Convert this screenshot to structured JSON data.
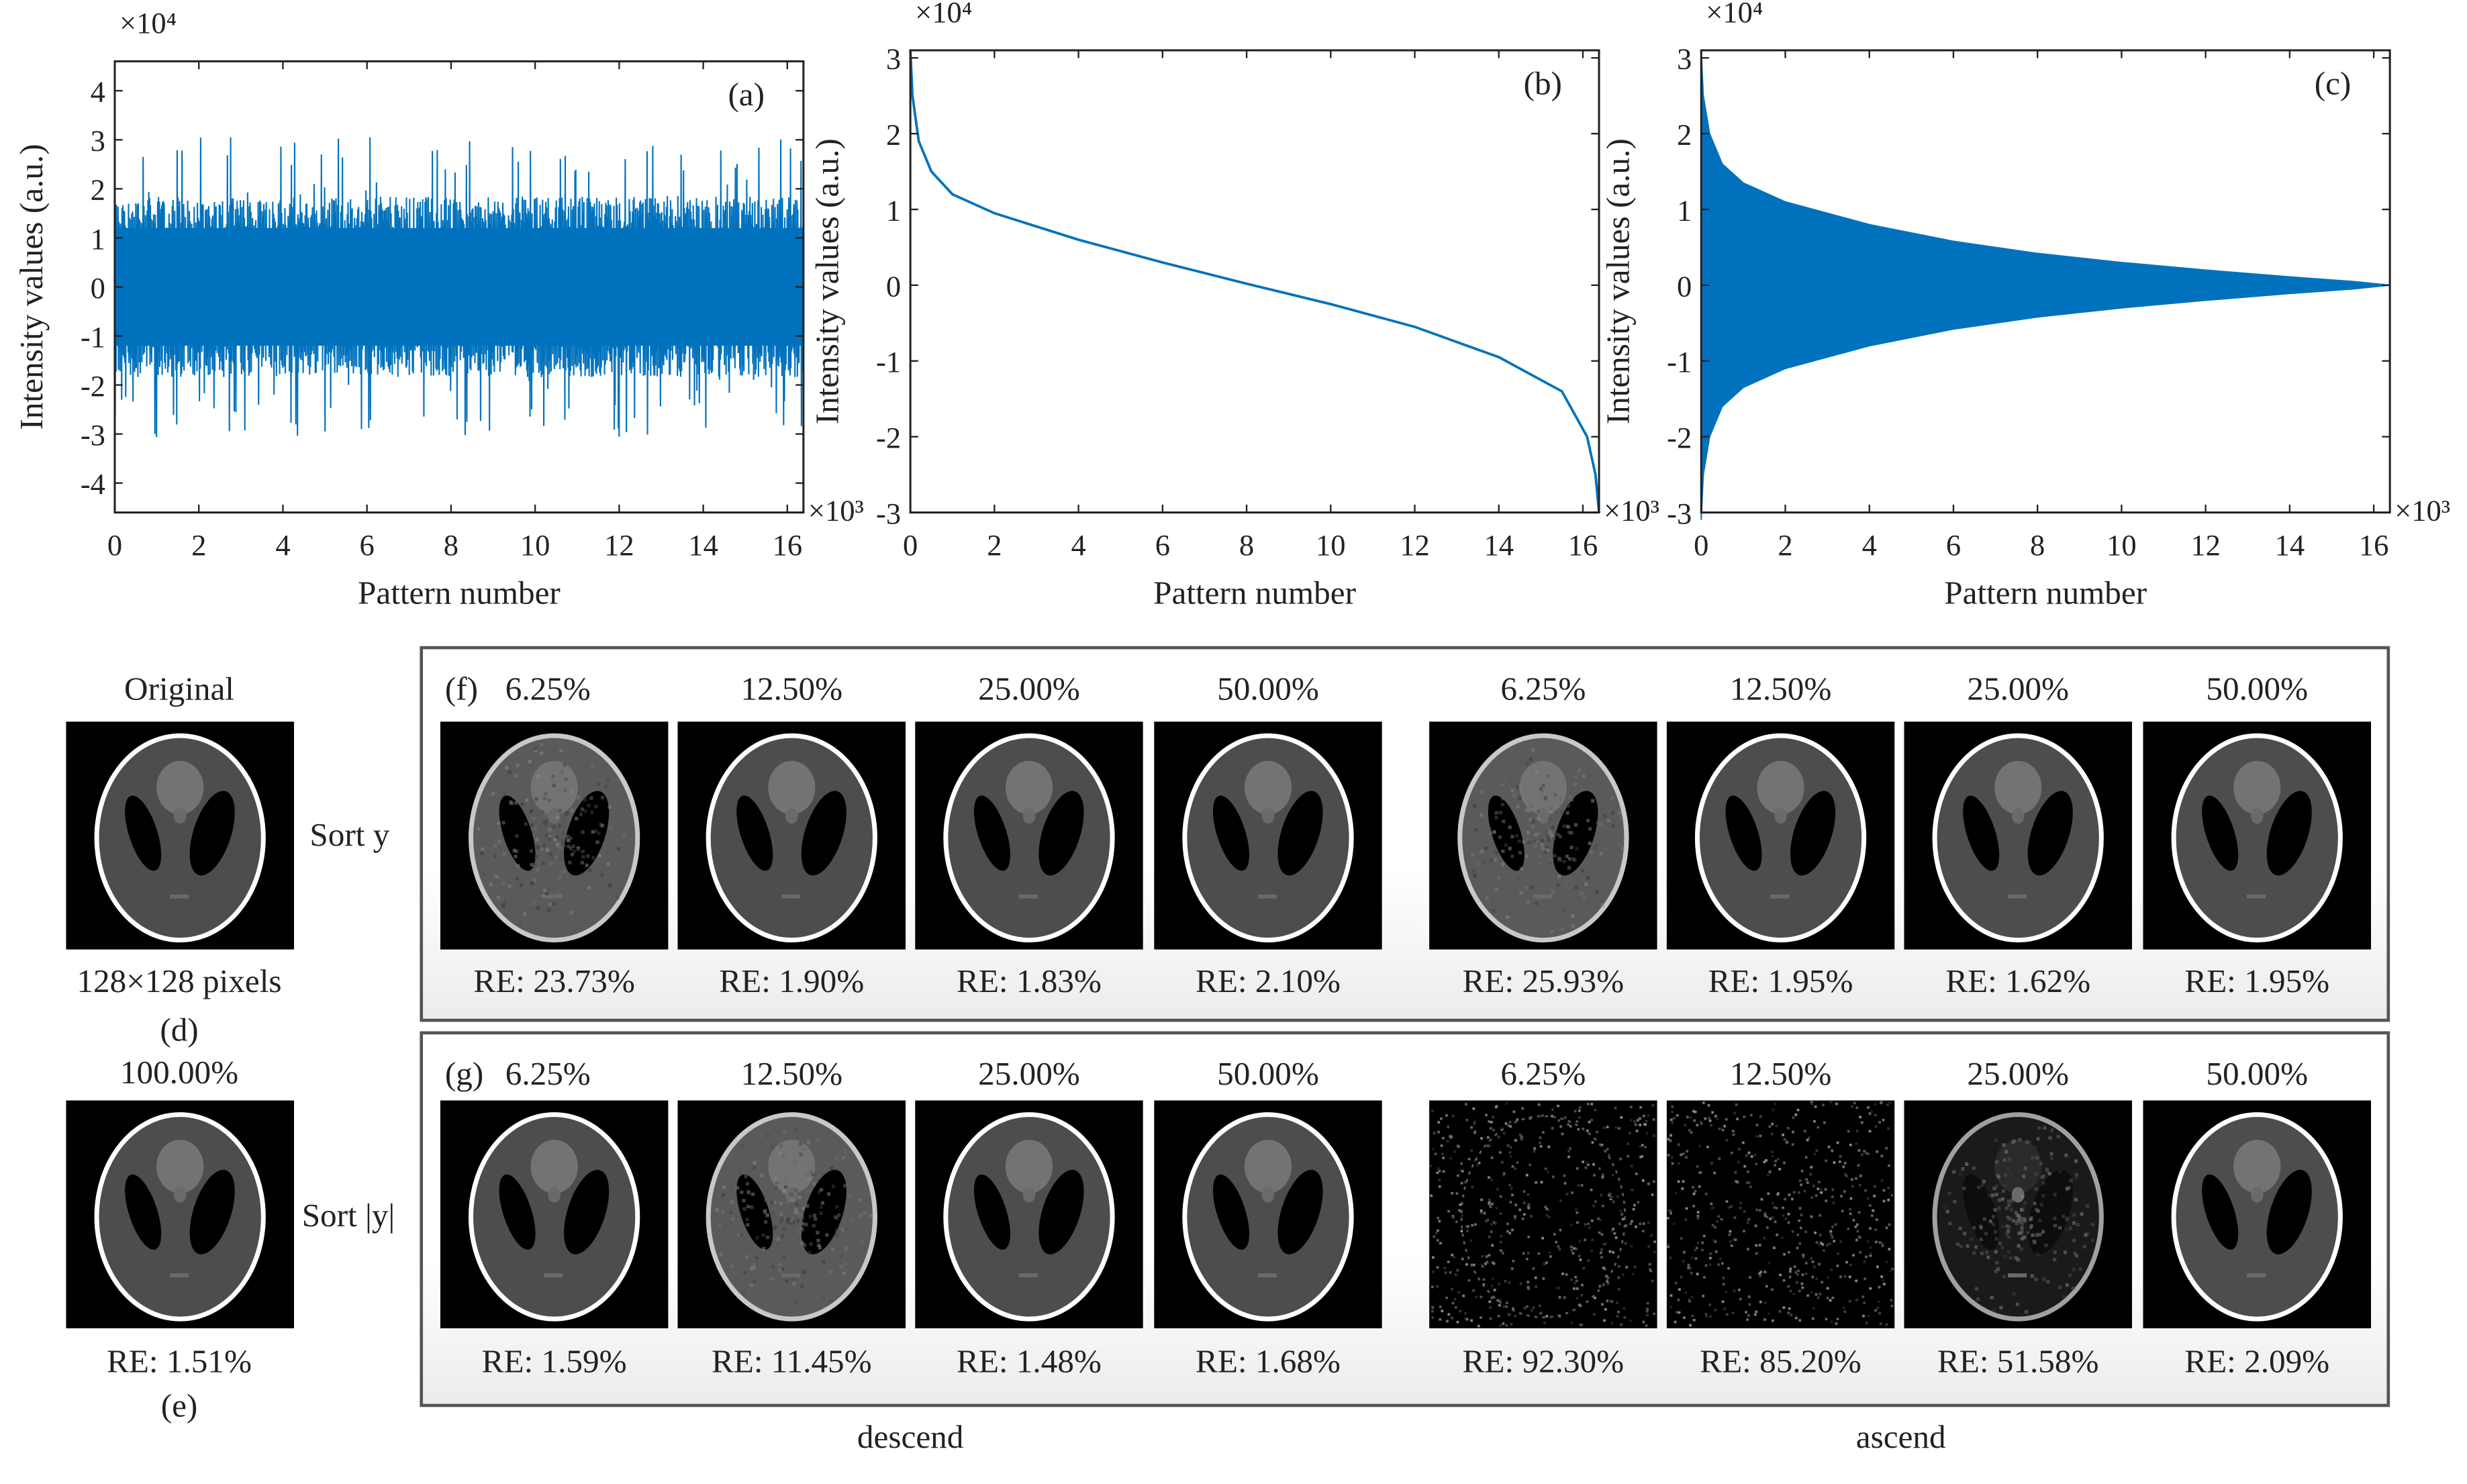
{
  "chart_data": [
    {
      "type": "line",
      "panel": "(a)",
      "description_series": "random-order measured intensities (noise-like oscillation)",
      "xlabel": "Pattern number",
      "ylabel": "Intensity values (a.u.)",
      "x_multiplier": "×10³",
      "y_multiplier": "×10⁴",
      "xlim": [
        0,
        16.384
      ],
      "ylim": [
        -4.6,
        4.6
      ],
      "xticks": [
        "0",
        "2",
        "4",
        "6",
        "8",
        "10",
        "12",
        "14",
        "16"
      ],
      "yticks": [
        "4",
        "3",
        "2",
        "1",
        "0",
        "-1",
        "-2",
        "-3",
        "-4"
      ],
      "series": [
        {
          "name": "y",
          "envelope_top": 1.6,
          "envelope_bottom": -1.6,
          "peak_max": 3.1,
          "peak_min": -3.0
        }
      ]
    },
    {
      "type": "line",
      "panel": "(b)",
      "xlabel": "Pattern number",
      "ylabel": "Intensity values (a.u.)",
      "x_multiplier": "×10³",
      "y_multiplier": "×10⁴",
      "xlim": [
        0,
        16.384
      ],
      "ylim": [
        -3,
        3.1
      ],
      "xticks": [
        "0",
        "2",
        "4",
        "6",
        "8",
        "10",
        "12",
        "14",
        "16"
      ],
      "yticks": [
        "3",
        "2",
        "1",
        "0",
        "-1",
        "-2",
        "-3"
      ],
      "series": [
        {
          "name": "sorted y (descend)",
          "x": [
            0,
            0.05,
            0.2,
            0.5,
            1,
            2,
            4,
            6,
            8,
            10,
            12,
            14,
            15.5,
            16.1,
            16.3,
            16.384
          ],
          "y": [
            3.1,
            2.5,
            1.9,
            1.5,
            1.2,
            0.95,
            0.6,
            0.3,
            0.02,
            -0.25,
            -0.55,
            -0.95,
            -1.4,
            -2.0,
            -2.5,
            -3.0
          ]
        }
      ]
    },
    {
      "type": "area",
      "panel": "(c)",
      "xlabel": "Pattern number",
      "ylabel": "Intensity values (a.u.)",
      "x_multiplier": "×10³",
      "y_multiplier": "×10⁴",
      "xlim": [
        0,
        16.384
      ],
      "ylim": [
        -3,
        3.1
      ],
      "xticks": [
        "0",
        "2",
        "4",
        "6",
        "8",
        "10",
        "12",
        "14",
        "16"
      ],
      "yticks": [
        "3",
        "2",
        "1",
        "0",
        "-1",
        "-2",
        "-3"
      ],
      "series": [
        {
          "name": "sorted |y| (descend), symmetric envelope",
          "x": [
            0,
            0.05,
            0.2,
            0.5,
            1,
            2,
            4,
            6,
            8,
            10,
            12,
            14,
            15.5,
            16.384
          ],
          "y": [
            3.1,
            2.5,
            2.0,
            1.6,
            1.35,
            1.1,
            0.8,
            0.58,
            0.42,
            0.3,
            0.2,
            0.11,
            0.05,
            0
          ]
        }
      ]
    }
  ],
  "figure": {
    "original": {
      "title": "Original",
      "caption": "128×128 pixels",
      "label": "(d)"
    },
    "full": {
      "title": "100.00%",
      "caption": "RE: 1.51%",
      "label": "(e)"
    },
    "row_f": {
      "tag": "(f)",
      "side_label": "Sort y",
      "items": [
        {
          "pct": "6.25%",
          "re": "RE: 23.73%",
          "quality": "blur"
        },
        {
          "pct": "12.50%",
          "re": "RE: 1.90%",
          "quality": "good"
        },
        {
          "pct": "25.00%",
          "re": "RE: 1.83%",
          "quality": "good"
        },
        {
          "pct": "50.00%",
          "re": "RE: 2.10%",
          "quality": "good"
        },
        {
          "pct": "6.25%",
          "re": "RE: 25.93%",
          "quality": "blur"
        },
        {
          "pct": "12.50%",
          "re": "RE: 1.95%",
          "quality": "good"
        },
        {
          "pct": "25.00%",
          "re": "RE: 1.62%",
          "quality": "good"
        },
        {
          "pct": "50.00%",
          "re": "RE: 1.95%",
          "quality": "good"
        }
      ]
    },
    "row_g": {
      "tag": "(g)",
      "side_label": "Sort |y|",
      "items": [
        {
          "pct": "6.25%",
          "re": "RE: 1.59%",
          "quality": "good"
        },
        {
          "pct": "12.50%",
          "re": "RE: 11.45%",
          "quality": "blur"
        },
        {
          "pct": "25.00%",
          "re": "RE: 1.48%",
          "quality": "good"
        },
        {
          "pct": "50.00%",
          "re": "RE: 1.68%",
          "quality": "good"
        },
        {
          "pct": "6.25%",
          "re": "RE: 92.30%",
          "quality": "noise"
        },
        {
          "pct": "12.50%",
          "re": "RE: 85.20%",
          "quality": "noise"
        },
        {
          "pct": "25.00%",
          "re": "RE: 51.58%",
          "quality": "ring"
        },
        {
          "pct": "50.00%",
          "re": "RE: 2.09%",
          "quality": "good"
        }
      ]
    },
    "group_labels": {
      "left": "descend",
      "right": "ascend"
    },
    "colors": {
      "line": "#0072bd",
      "axis": "#222222"
    }
  }
}
